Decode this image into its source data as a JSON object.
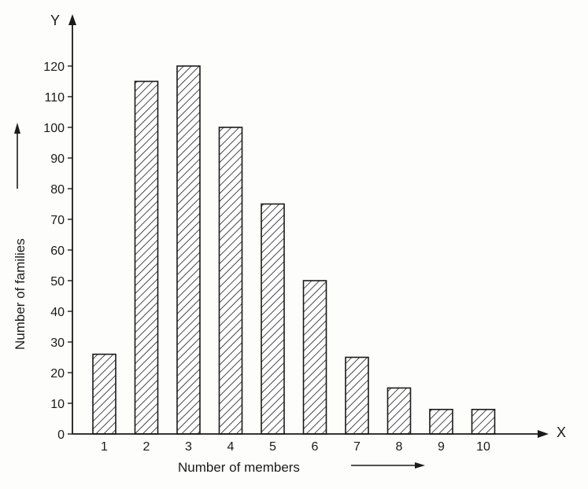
{
  "chart_data": {
    "type": "bar",
    "categories": [
      "1",
      "2",
      "3",
      "4",
      "5",
      "6",
      "7",
      "8",
      "9",
      "10"
    ],
    "values": [
      26,
      115,
      120,
      100,
      75,
      50,
      25,
      15,
      8,
      8
    ],
    "title": "",
    "xlabel": "Number of members",
    "ylabel": "Number of families",
    "x_axis_letter": "X",
    "y_axis_letter": "Y",
    "ylim": [
      0,
      120
    ],
    "yticks": [
      0,
      10,
      20,
      30,
      40,
      50,
      60,
      70,
      80,
      90,
      100,
      110,
      120
    ],
    "grid": false,
    "legend": "none",
    "bar_fill": "diagonal-hatch",
    "colors": {
      "ink": "#1a1a1a",
      "background": "#fdfdfb"
    }
  }
}
